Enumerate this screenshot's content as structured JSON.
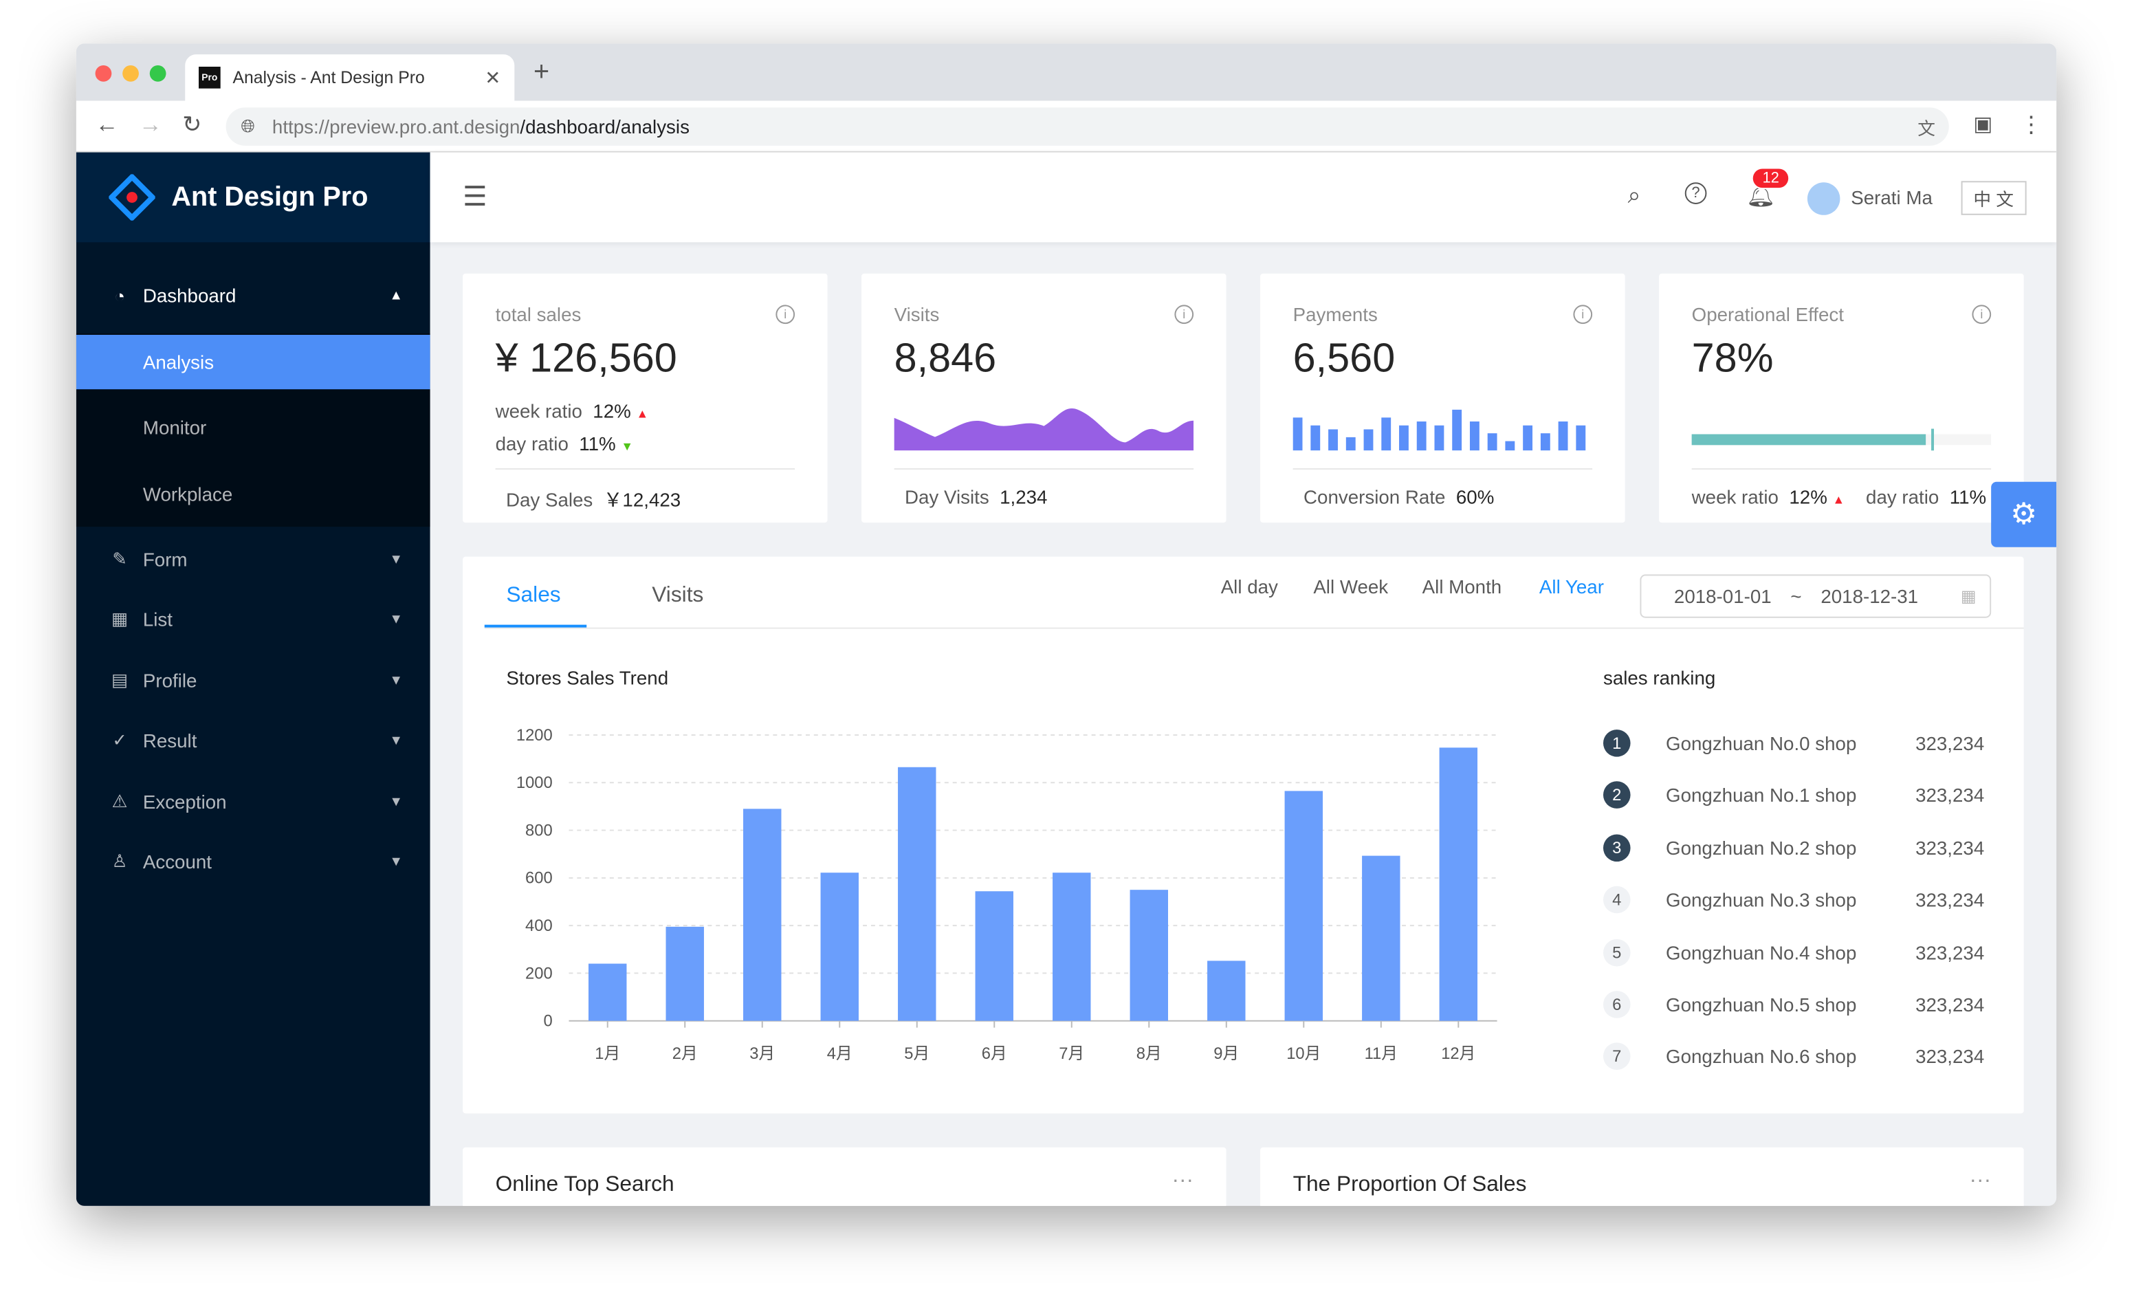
{
  "browser": {
    "tab_title": "Analysis - Ant Design Pro",
    "favicon_text": "Pro",
    "url_host": "https://preview.pro.ant.design",
    "url_path": "/dashboard/analysis"
  },
  "sidebar": {
    "logo": "Ant Design Pro",
    "items": [
      {
        "label": "Dashboard",
        "icon": "dashboard-icon"
      },
      {
        "label": "Analysis"
      },
      {
        "label": "Monitor"
      },
      {
        "label": "Workplace"
      },
      {
        "label": "Form",
        "icon": "form-icon"
      },
      {
        "label": "List",
        "icon": "table-icon"
      },
      {
        "label": "Profile",
        "icon": "profile-icon"
      },
      {
        "label": "Result",
        "icon": "check-circle-icon"
      },
      {
        "label": "Exception",
        "icon": "warning-icon"
      },
      {
        "label": "Account",
        "icon": "user-icon"
      }
    ]
  },
  "header": {
    "notification_count": "12",
    "user_name": "Serati Ma",
    "lang": "中 文"
  },
  "cards": [
    {
      "title": "total sales",
      "value": "¥ 126,560",
      "week_label": "week ratio",
      "week_value": "12%",
      "day_label": "day ratio",
      "day_value": "11%",
      "footer_label": "Day Sales",
      "footer_value": "￥12,423"
    },
    {
      "title": "Visits",
      "value": "8,846",
      "footer_label": "Day Visits",
      "footer_value": "1,234"
    },
    {
      "title": "Payments",
      "value": "6,560",
      "footer_label": "Conversion Rate",
      "footer_value": "60%",
      "mini_bars": [
        7,
        5,
        4,
        2,
        4,
        7,
        5,
        6,
        5,
        9,
        6,
        3,
        1,
        5,
        3,
        6,
        5
      ]
    },
    {
      "title": "Operational Effect",
      "value": "78%",
      "progress": 0.78,
      "target": 0.8,
      "week_label": "week ratio",
      "week_value": "12%",
      "day_label": "day ratio",
      "day_value": "11%"
    }
  ],
  "sales": {
    "tabs": [
      "Sales",
      "Visits"
    ],
    "ranges": [
      "All day",
      "All Week",
      "All Month",
      "All Year"
    ],
    "active_range": "All Year",
    "date_start": "2018-01-01",
    "date_sep": "~",
    "date_end": "2018-12-31",
    "ranking_title": "sales ranking",
    "ranking": [
      {
        "rank": "1",
        "name": "Gongzhuan No.0 shop",
        "value": "323,234"
      },
      {
        "rank": "2",
        "name": "Gongzhuan No.1 shop",
        "value": "323,234"
      },
      {
        "rank": "3",
        "name": "Gongzhuan No.2 shop",
        "value": "323,234"
      },
      {
        "rank": "4",
        "name": "Gongzhuan No.3 shop",
        "value": "323,234"
      },
      {
        "rank": "5",
        "name": "Gongzhuan No.4 shop",
        "value": "323,234"
      },
      {
        "rank": "6",
        "name": "Gongzhuan No.5 shop",
        "value": "323,234"
      },
      {
        "rank": "7",
        "name": "Gongzhuan No.6 shop",
        "value": "323,234"
      }
    ]
  },
  "chart_data": {
    "type": "bar",
    "title": "Stores Sales Trend",
    "categories": [
      "1月",
      "2月",
      "3月",
      "4月",
      "5月",
      "6月",
      "7月",
      "8月",
      "9月",
      "10月",
      "11月",
      "12月"
    ],
    "values": [
      240,
      395,
      890,
      622,
      1065,
      544,
      622,
      550,
      252,
      965,
      693,
      1147
    ],
    "ylim": [
      0,
      1200
    ],
    "yticks": [
      0,
      200,
      400,
      600,
      800,
      1000,
      1200
    ],
    "grid": true,
    "color": "#6a9efc"
  },
  "bottom": {
    "left_title": "Online Top Search",
    "right_title": "The Proportion Of Sales",
    "more": "···"
  }
}
